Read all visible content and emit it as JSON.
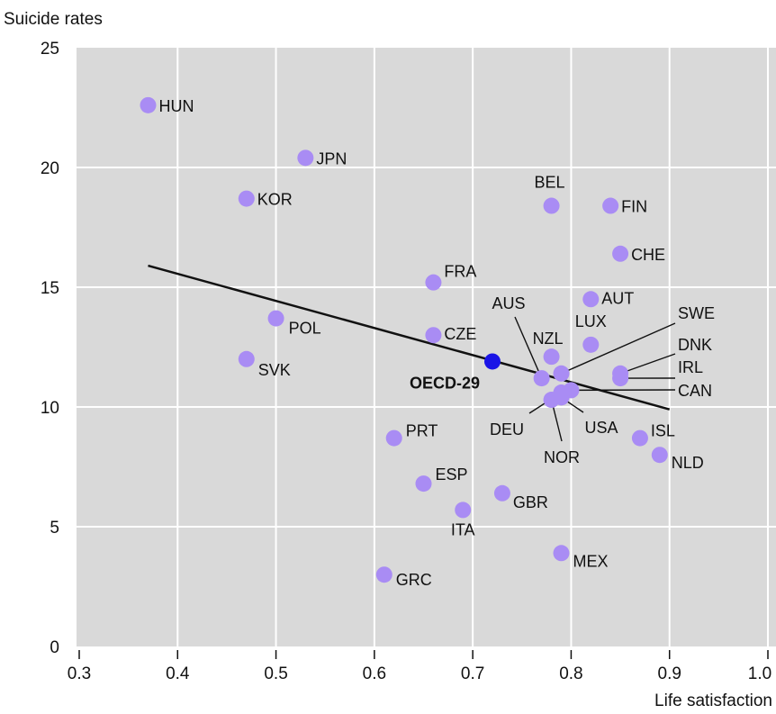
{
  "chart_data": {
    "type": "scatter",
    "title": "",
    "xlabel": "Life satisfaction",
    "ylabel": "Suicide rates",
    "xlim": [
      0.3,
      1.0
    ],
    "ylim": [
      0,
      25
    ],
    "xticks": [
      "0.3",
      "0.4",
      "0.5",
      "0.6",
      "0.7",
      "0.8",
      "0.9",
      "1.0"
    ],
    "yticks": [
      "0",
      "5",
      "10",
      "15",
      "20",
      "25"
    ],
    "grid": true,
    "colors": {
      "point": "#a98cf4",
      "highlight": "#1a14e6",
      "trend": "#111111",
      "plot_bg": "#d9d9d9",
      "grid": "#ffffff"
    },
    "points": [
      {
        "label": "HUN",
        "x": 0.37,
        "y": 22.6
      },
      {
        "label": "JPN",
        "x": 0.53,
        "y": 20.4
      },
      {
        "label": "KOR",
        "x": 0.47,
        "y": 18.7
      },
      {
        "label": "BEL",
        "x": 0.78,
        "y": 18.4
      },
      {
        "label": "FIN",
        "x": 0.84,
        "y": 18.4
      },
      {
        "label": "CHE",
        "x": 0.85,
        "y": 16.4
      },
      {
        "label": "FRA",
        "x": 0.66,
        "y": 15.2
      },
      {
        "label": "AUT",
        "x": 0.82,
        "y": 14.5
      },
      {
        "label": "POL",
        "x": 0.5,
        "y": 13.7
      },
      {
        "label": "CZE",
        "x": 0.66,
        "y": 13.0
      },
      {
        "label": "LUX",
        "x": 0.82,
        "y": 12.6
      },
      {
        "label": "NZL",
        "x": 0.78,
        "y": 12.1
      },
      {
        "label": "SVK",
        "x": 0.47,
        "y": 12.0
      },
      {
        "label": "OECD-29",
        "x": 0.72,
        "y": 11.9,
        "highlight": true
      },
      {
        "label": "SWE",
        "x": 0.79,
        "y": 11.4
      },
      {
        "label": "DNK",
        "x": 0.85,
        "y": 11.4
      },
      {
        "label": "AUS",
        "x": 0.77,
        "y": 11.2
      },
      {
        "label": "IRL",
        "x": 0.85,
        "y": 11.2
      },
      {
        "label": "CAN",
        "x": 0.8,
        "y": 10.7
      },
      {
        "label": "DEU",
        "x": 0.79,
        "y": 10.6
      },
      {
        "label": "NOR",
        "x": 0.78,
        "y": 10.3
      },
      {
        "label": "USA",
        "x": 0.79,
        "y": 10.4
      },
      {
        "label": "PRT",
        "x": 0.62,
        "y": 8.7
      },
      {
        "label": "ISL",
        "x": 0.87,
        "y": 8.7
      },
      {
        "label": "NLD",
        "x": 0.89,
        "y": 8.0
      },
      {
        "label": "ESP",
        "x": 0.65,
        "y": 6.8
      },
      {
        "label": "GBR",
        "x": 0.73,
        "y": 6.4
      },
      {
        "label": "ITA",
        "x": 0.69,
        "y": 5.7
      },
      {
        "label": "MEX",
        "x": 0.79,
        "y": 3.9
      },
      {
        "label": "GRC",
        "x": 0.61,
        "y": 3.0
      }
    ],
    "trendline": [
      {
        "x": 0.37,
        "y": 15.9
      },
      {
        "x": 0.9,
        "y": 9.9
      }
    ]
  }
}
